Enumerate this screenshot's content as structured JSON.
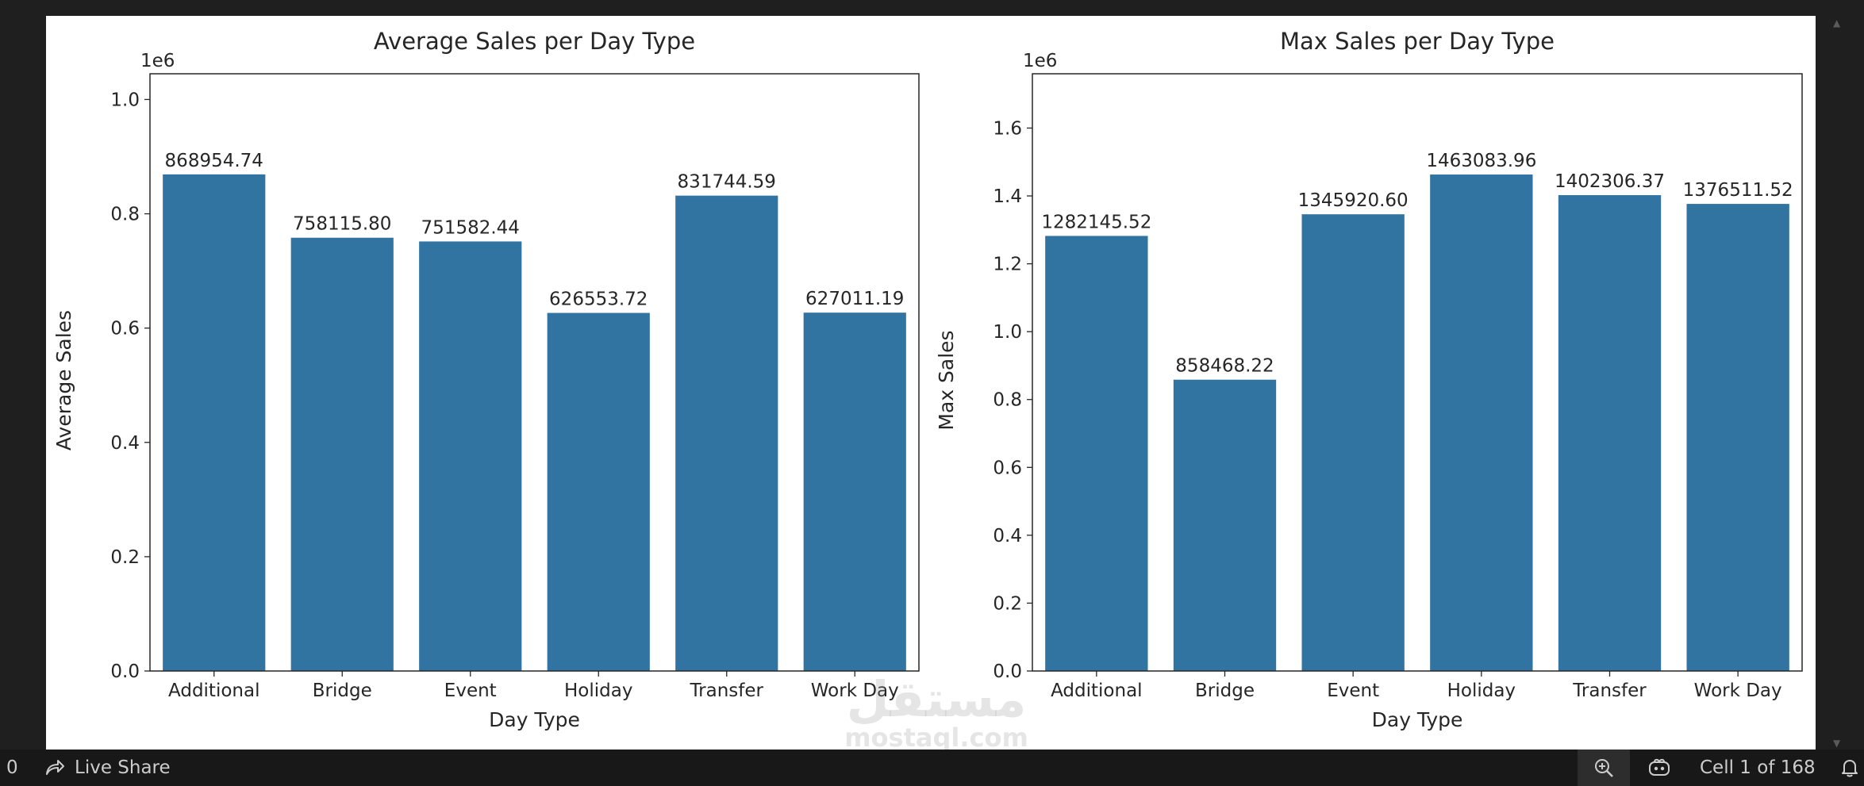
{
  "chart_data": [
    {
      "type": "bar",
      "title": "Average Sales per Day Type",
      "xlabel": "Day Type",
      "ylabel": "Average Sales",
      "offset_text": "1e6",
      "categories": [
        "Additional",
        "Bridge",
        "Event",
        "Holiday",
        "Transfer",
        "Work Day"
      ],
      "values": [
        868954.74,
        758115.8,
        751582.44,
        626553.72,
        831744.59,
        627011.19
      ],
      "value_labels": [
        "868954.74",
        "758115.80",
        "751582.44",
        "626553.72",
        "831744.59",
        "627011.19"
      ],
      "ylim": [
        0,
        1045000
      ],
      "yticks": [
        0,
        200000,
        400000,
        600000,
        800000,
        1000000
      ],
      "ytick_labels": [
        "0.0",
        "0.2",
        "0.4",
        "0.6",
        "0.8",
        "1.0"
      ],
      "color": "#3274a1",
      "grid": false
    },
    {
      "type": "bar",
      "title": "Max Sales per Day Type",
      "xlabel": "Day Type",
      "ylabel": "Max Sales",
      "offset_text": "1e6",
      "categories": [
        "Additional",
        "Bridge",
        "Event",
        "Holiday",
        "Transfer",
        "Work Day"
      ],
      "values": [
        1282145.52,
        858468.22,
        1345920.6,
        1463083.96,
        1402306.37,
        1376511.52
      ],
      "value_labels": [
        "1282145.52",
        "858468.22",
        "1345920.60",
        "1463083.96",
        "1402306.37",
        "1376511.52"
      ],
      "ylim": [
        0,
        1760000
      ],
      "yticks": [
        0,
        200000,
        400000,
        600000,
        800000,
        1000000,
        1200000,
        1400000,
        1600000
      ],
      "ytick_labels": [
        "0.0",
        "0.2",
        "0.4",
        "0.6",
        "0.8",
        "1.0",
        "1.2",
        "1.4",
        "1.6"
      ],
      "color": "#3274a1",
      "grid": false
    }
  ],
  "status_bar": {
    "left_count": "0",
    "live_share": "Live Share",
    "cell_indicator": "Cell 1 of 168"
  },
  "icons": {
    "live_share": "live-share-icon",
    "zoom": "zoom-icon",
    "copilot": "copilot-icon",
    "notifications": "bell-icon"
  },
  "watermark": {
    "arabic": "مستقل",
    "latin": "mostaql.com"
  }
}
